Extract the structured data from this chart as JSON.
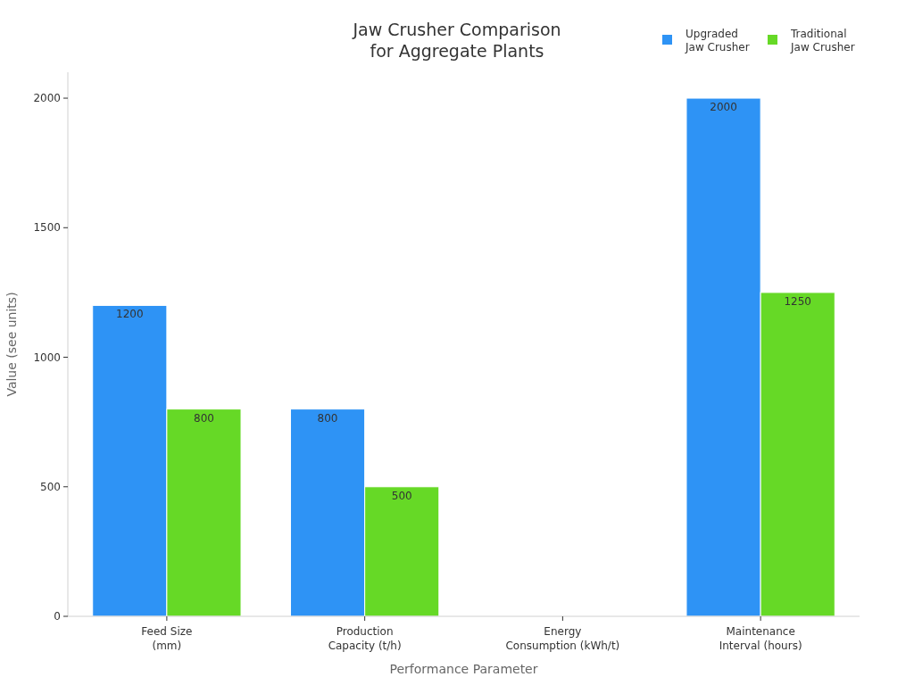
{
  "chart_data": {
    "type": "bar",
    "title": "Jaw Crusher Comparison\nfor Aggregate Plants",
    "xlabel": "Performance Parameter",
    "ylabel": "Value (see units)",
    "categories": [
      "Feed Size\n(mm)",
      "Production\nCapacity (t/h)",
      "Energy\nConsumption (kWh/t)",
      "Maintenance\nInterval (hours)"
    ],
    "series": [
      {
        "name": "Upgraded\nJaw Crusher",
        "color": "#2e93f5",
        "values": [
          1200,
          800,
          null,
          2000
        ],
        "value_labels": [
          "1200",
          "800",
          null,
          "2000"
        ]
      },
      {
        "name": "Traditional\nJaw Crusher",
        "color": "#66d926",
        "values": [
          800,
          500,
          null,
          1250
        ],
        "value_labels": [
          "800",
          "500",
          null,
          "1250"
        ]
      }
    ],
    "ylim": [
      0,
      2100
    ],
    "yticks": [
      0,
      500,
      1000,
      1500,
      2000
    ],
    "grid": false,
    "legend": "top right"
  }
}
